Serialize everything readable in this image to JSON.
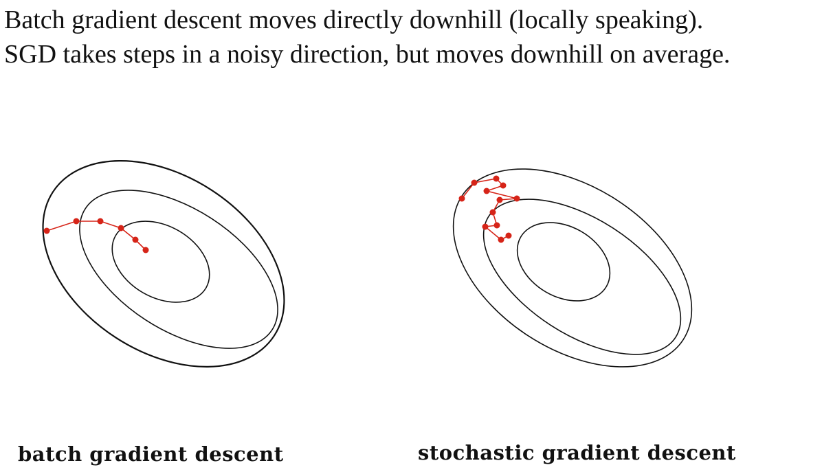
{
  "text": {
    "line1": "Batch gradient descent moves directly downhill (locally speaking).",
    "line2": "SGD takes steps in a noisy direction, but moves downhill on average."
  },
  "panels": [
    {
      "caption": "batch gradient descent",
      "path_color": "#d62418",
      "contour_color": "#111111"
    },
    {
      "caption": "stochastic gradient descent",
      "path_color": "#d62418",
      "contour_color": "#111111"
    }
  ]
}
